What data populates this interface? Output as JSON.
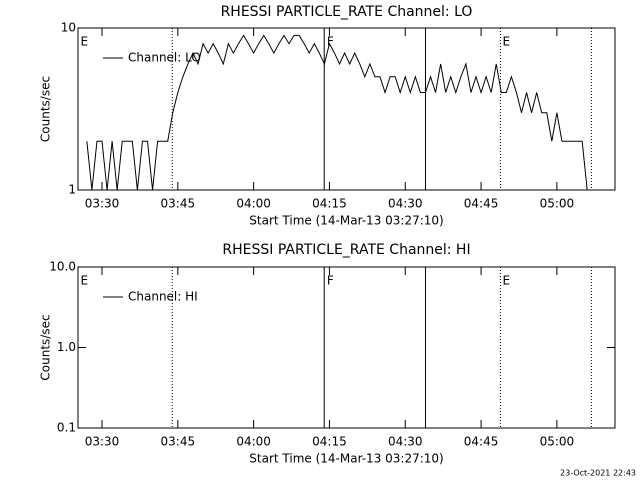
{
  "chart_data": [
    {
      "type": "line",
      "title": "RHESSI PARTICLE_RATE Channel: LO",
      "xlabel": "Start Time (14-Mar-13 03:27:10)",
      "ylabel": "Counts/sec",
      "log_y": true,
      "legend": "upper left",
      "xlim": [
        "03:25:15",
        "05:11:30"
      ],
      "xticks": [
        "03:30",
        "03:45",
        "04:00",
        "04:15",
        "04:30",
        "04:45",
        "05:00"
      ],
      "ylim": [
        1,
        10
      ],
      "yticks": [
        1,
        10
      ],
      "x": [
        "03:27",
        "03:28",
        "03:29",
        "03:30",
        "03:31",
        "03:32",
        "03:33",
        "03:34",
        "03:35",
        "03:36",
        "03:37",
        "03:38",
        "03:39",
        "03:40",
        "03:41",
        "03:42",
        "03:43",
        "03:44",
        "03:45",
        "03:46",
        "03:47",
        "03:48",
        "03:49",
        "03:50",
        "03:51",
        "03:52",
        "03:53",
        "03:54",
        "03:55",
        "03:56",
        "03:57",
        "03:58",
        "03:59",
        "04:00",
        "04:01",
        "04:02",
        "04:03",
        "04:04",
        "04:05",
        "04:06",
        "04:07",
        "04:08",
        "04:09",
        "04:10",
        "04:11",
        "04:12",
        "04:13",
        "04:14",
        "04:15",
        "04:16",
        "04:17",
        "04:18",
        "04:19",
        "04:20",
        "04:21",
        "04:22",
        "04:23",
        "04:24",
        "04:25",
        "04:26",
        "04:27",
        "04:28",
        "04:29",
        "04:30",
        "04:31",
        "04:32",
        "04:33",
        "04:34",
        "04:35",
        "04:36",
        "04:37",
        "04:38",
        "04:39",
        "04:40",
        "04:41",
        "04:42",
        "04:43",
        "04:44",
        "04:45",
        "04:46",
        "04:47",
        "04:48",
        "04:49",
        "04:50",
        "04:51",
        "04:52",
        "04:53",
        "04:54",
        "04:55",
        "04:56",
        "04:57",
        "04:58",
        "04:59",
        "05:00",
        "05:01",
        "05:02",
        "05:03",
        "05:04",
        "05:05",
        "05:06"
      ],
      "series": [
        {
          "name": "Channel: LO",
          "color": "#000000",
          "values": [
            2,
            1,
            2,
            2,
            1,
            2,
            1,
            2,
            2,
            2,
            1,
            2,
            2,
            1,
            2,
            2,
            2,
            3,
            4,
            5,
            6,
            7,
            6,
            8,
            7,
            8,
            7,
            6,
            8,
            7,
            8,
            9,
            8,
            7,
            8,
            9,
            8,
            7,
            8,
            9,
            8,
            9,
            9,
            8,
            7,
            8,
            7,
            6,
            8,
            7,
            6,
            7,
            6,
            7,
            6,
            5,
            6,
            5,
            5,
            4,
            5,
            5,
            4,
            5,
            4,
            5,
            4,
            4,
            5,
            4,
            6,
            4,
            5,
            4,
            5,
            6,
            4,
            5,
            4,
            5,
            4,
            6,
            4,
            4,
            5,
            4,
            3,
            4,
            3,
            4,
            3,
            3,
            2,
            3,
            2,
            2,
            2,
            2,
            2,
            1
          ]
        }
      ],
      "flags": [
        {
          "time": "03:43:54",
          "style": "dotted"
        },
        {
          "time": "04:13:58",
          "style": "solid"
        },
        {
          "time": "04:34:00",
          "style": "solid"
        },
        {
          "time": "04:48:50",
          "style": "dotted"
        },
        {
          "time": "05:06:50",
          "style": "dotted"
        }
      ],
      "flag_labels": [
        {
          "time": "03:25:45",
          "text": "E"
        },
        {
          "time": "04:14:30",
          "text": "F"
        },
        {
          "time": "04:49:15",
          "text": "E"
        }
      ]
    },
    {
      "type": "line",
      "title": "RHESSI PARTICLE_RATE Channel: HI",
      "xlabel": "Start Time (14-Mar-13 03:27:10)",
      "ylabel": "Counts/sec",
      "log_y": true,
      "legend": "upper left",
      "xlim": [
        "03:25:15",
        "05:11:30"
      ],
      "xticks": [
        "03:30",
        "03:45",
        "04:00",
        "04:15",
        "04:30",
        "04:45",
        "05:00"
      ],
      "ylim": [
        0.1,
        10
      ],
      "yticks": [
        0.1,
        {
          "value": 1,
          "label": "1.0"
        },
        {
          "value": 10,
          "label": "10.0"
        }
      ],
      "x": [],
      "series": [
        {
          "name": "Channel: HI",
          "color": "#000000",
          "values": []
        }
      ],
      "flags": [
        {
          "time": "03:43:54",
          "style": "dotted"
        },
        {
          "time": "04:13:58",
          "style": "solid"
        },
        {
          "time": "04:34:00",
          "style": "solid"
        },
        {
          "time": "04:48:50",
          "style": "dotted"
        },
        {
          "time": "05:06:50",
          "style": "dotted"
        }
      ],
      "flag_labels": [
        {
          "time": "03:25:45",
          "text": "E"
        },
        {
          "time": "04:14:30",
          "text": "F"
        },
        {
          "time": "04:49:15",
          "text": "E"
        }
      ]
    }
  ],
  "footer": "23-Oct-2021 22:43"
}
